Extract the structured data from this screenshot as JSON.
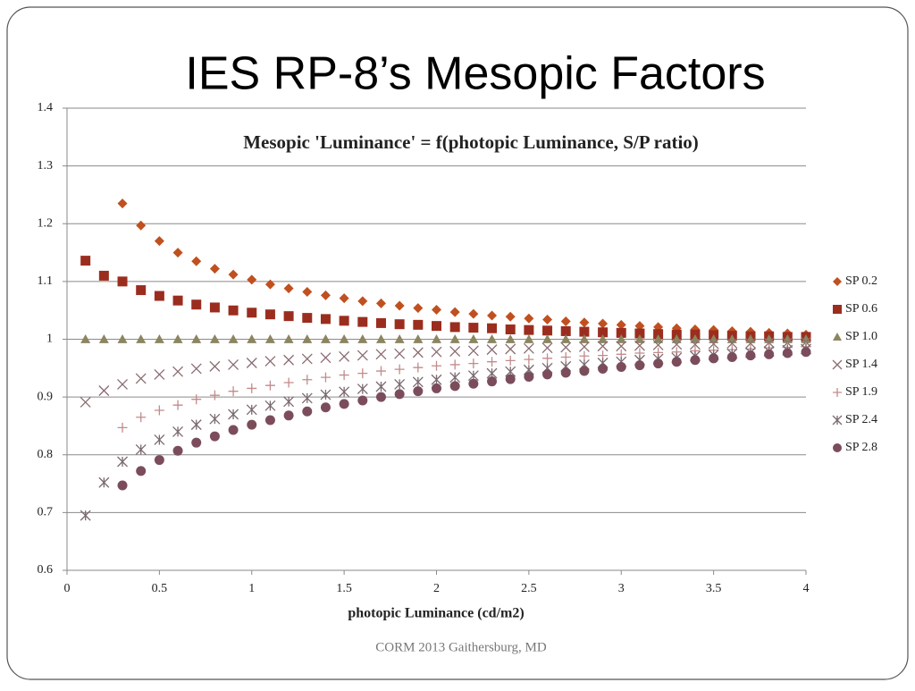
{
  "slide_title": "IES RP-8’s Mesopic Factors",
  "footer": "CORM 2013  Gaithersburg, MD",
  "chart_data": {
    "type": "scatter",
    "title": "Mesopic  'Luminance' = f(photopic Luminance, S/P ratio)",
    "x_label": "photopic Luminance (cd/m2)",
    "x": [
      0.1,
      0.2,
      0.3,
      0.4,
      0.5,
      0.6,
      0.7,
      0.8,
      0.9,
      1.0,
      1.1,
      1.2,
      1.3,
      1.4,
      1.5,
      1.6,
      1.7,
      1.8,
      1.9,
      2.0,
      2.1,
      2.2,
      2.3,
      2.4,
      2.5,
      2.6,
      2.7,
      2.8,
      2.9,
      3.0,
      3.1,
      3.2,
      3.3,
      3.4,
      3.5,
      3.6,
      3.7,
      3.8,
      3.9,
      4.0
    ],
    "xlim": [
      0,
      4
    ],
    "xticks": [
      0,
      0.5,
      1,
      1.5,
      2,
      2.5,
      3,
      3.5,
      4
    ],
    "ylim": [
      0.6,
      1.4
    ],
    "yticks": [
      0.6,
      0.7,
      0.8,
      0.9,
      1,
      1.1,
      1.2,
      1.3,
      1.4
    ],
    "grid": true,
    "legend": "right",
    "series": [
      {
        "name": "SP 0.2",
        "color": "#c0501f",
        "marker": "diamond",
        "values": [
          null,
          null,
          1.235,
          1.197,
          1.17,
          1.15,
          1.135,
          1.122,
          1.112,
          1.103,
          1.095,
          1.088,
          1.082,
          1.076,
          1.071,
          1.066,
          1.062,
          1.058,
          1.054,
          1.051,
          1.047,
          1.044,
          1.041,
          1.039,
          1.036,
          1.034,
          1.031,
          1.029,
          1.027,
          1.025,
          1.023,
          1.021,
          1.019,
          1.017,
          1.016,
          1.014,
          1.013,
          1.011,
          1.01,
          1.008
        ]
      },
      {
        "name": "SP 0.6",
        "color": "#9b2d1f",
        "marker": "square",
        "values": [
          1.136,
          1.11,
          1.1,
          1.085,
          1.075,
          1.067,
          1.06,
          1.055,
          1.05,
          1.046,
          1.043,
          1.04,
          1.037,
          1.035,
          1.032,
          1.03,
          1.028,
          1.026,
          1.025,
          1.023,
          1.021,
          1.02,
          1.019,
          1.017,
          1.016,
          1.015,
          1.014,
          1.013,
          1.012,
          1.011,
          1.01,
          1.009,
          1.008,
          1.008,
          1.007,
          1.006,
          1.005,
          1.005,
          1.004,
          1.004
        ]
      },
      {
        "name": "SP 1.0",
        "color": "#8b8560",
        "marker": "triangle",
        "values": [
          1,
          1,
          1,
          1,
          1,
          1,
          1,
          1,
          1,
          1,
          1,
          1,
          1,
          1,
          1,
          1,
          1,
          1,
          1,
          1,
          1,
          1,
          1,
          1,
          1,
          1,
          1,
          1,
          1,
          1,
          1,
          1,
          1,
          1,
          1,
          1,
          1,
          1,
          1,
          1
        ]
      },
      {
        "name": "SP 1.4",
        "color": "#8a6c70",
        "marker": "cross",
        "values": [
          0.891,
          0.911,
          0.922,
          0.932,
          0.939,
          0.944,
          0.949,
          0.953,
          0.956,
          0.959,
          0.962,
          0.964,
          0.966,
          0.968,
          0.97,
          0.972,
          0.974,
          0.975,
          0.977,
          0.978,
          0.979,
          0.98,
          0.982,
          0.983,
          0.984,
          0.985,
          0.986,
          0.987,
          0.988,
          0.988,
          0.989,
          0.99,
          0.991,
          0.991,
          0.992,
          0.993,
          0.993,
          0.994,
          0.994,
          0.995
        ]
      },
      {
        "name": "SP 1.9",
        "color": "#c48a8a",
        "marker": "plus",
        "values": [
          null,
          null,
          0.847,
          0.865,
          0.877,
          0.886,
          0.896,
          0.903,
          0.91,
          0.915,
          0.92,
          0.925,
          0.93,
          0.934,
          0.938,
          0.941,
          0.945,
          0.948,
          0.951,
          0.954,
          0.956,
          0.958,
          0.961,
          0.963,
          0.965,
          0.967,
          0.969,
          0.971,
          0.972,
          0.974,
          0.976,
          0.977,
          0.978,
          0.98,
          0.981,
          0.982,
          0.983,
          0.985,
          0.986,
          0.987
        ]
      },
      {
        "name": "SP 2.4",
        "color": "#7a6a70",
        "marker": "asterisk",
        "values": [
          0.695,
          0.752,
          0.788,
          0.809,
          0.826,
          0.84,
          0.852,
          0.862,
          0.87,
          0.878,
          0.885,
          0.892,
          0.898,
          0.904,
          0.909,
          0.914,
          0.918,
          0.922,
          0.926,
          0.93,
          0.934,
          0.937,
          0.941,
          0.944,
          0.947,
          0.95,
          0.953,
          0.956,
          0.959,
          0.961,
          0.964,
          0.966,
          0.968,
          0.971,
          0.973,
          0.975,
          0.977,
          0.979,
          0.981,
          0.983
        ]
      },
      {
        "name": "SP 2.8",
        "color": "#7b4d5b",
        "marker": "circle",
        "values": [
          null,
          null,
          0.747,
          0.772,
          0.791,
          0.807,
          0.821,
          0.832,
          0.843,
          0.852,
          0.86,
          0.868,
          0.875,
          0.882,
          0.888,
          0.894,
          0.9,
          0.905,
          0.91,
          0.915,
          0.919,
          0.923,
          0.927,
          0.931,
          0.935,
          0.939,
          0.942,
          0.945,
          0.949,
          0.952,
          0.955,
          0.958,
          0.961,
          0.964,
          0.967,
          0.969,
          0.972,
          0.974,
          0.976,
          0.978
        ]
      }
    ]
  }
}
